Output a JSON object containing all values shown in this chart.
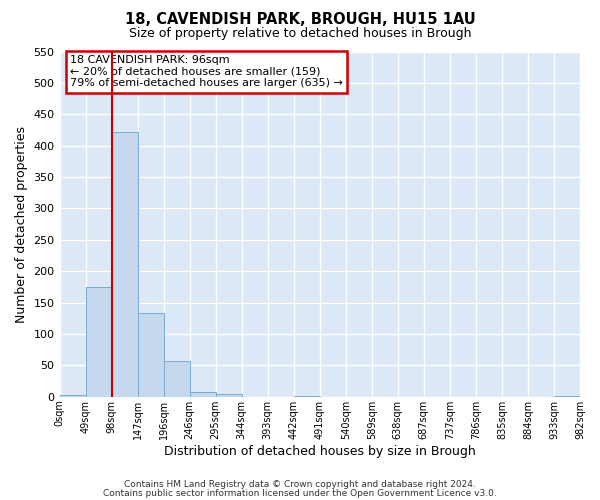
{
  "title": "18, CAVENDISH PARK, BROUGH, HU15 1AU",
  "subtitle": "Size of property relative to detached houses in Brough",
  "xlabel": "Distribution of detached houses by size in Brough",
  "ylabel": "Number of detached properties",
  "bar_color": "#c5d8ee",
  "bar_edge_color": "#7aaad4",
  "background_color": "#dce8f5",
  "grid_color": "#ffffff",
  "fig_color": "#ffffff",
  "bin_edges": [
    0,
    49,
    98,
    147,
    196,
    245,
    294,
    343,
    392,
    441,
    490,
    539,
    588,
    637,
    686,
    735,
    784,
    833,
    882,
    931,
    980
  ],
  "bin_labels": [
    "0sqm",
    "49sqm",
    "98sqm",
    "147sqm",
    "196sqm",
    "246sqm",
    "295sqm",
    "344sqm",
    "393sqm",
    "442sqm",
    "491sqm",
    "540sqm",
    "589sqm",
    "638sqm",
    "687sqm",
    "737sqm",
    "786sqm",
    "835sqm",
    "884sqm",
    "933sqm",
    "982sqm"
  ],
  "bar_heights": [
    3,
    175,
    422,
    133,
    57,
    7,
    4,
    0,
    0,
    2,
    0,
    0,
    0,
    0,
    0,
    0,
    0,
    0,
    0,
    2
  ],
  "ylim": [
    0,
    550
  ],
  "yticks": [
    0,
    50,
    100,
    150,
    200,
    250,
    300,
    350,
    400,
    450,
    500,
    550
  ],
  "property_label": "18 CAVENDISH PARK: 96sqm",
  "annotation_line1": "← 20% of detached houses are smaller (159)",
  "annotation_line2": "79% of semi-detached houses are larger (635) →",
  "vline_x": 98,
  "vline_color": "#cc0000",
  "annotation_box_color": "#cc0000",
  "footer_line1": "Contains HM Land Registry data © Crown copyright and database right 2024.",
  "footer_line2": "Contains public sector information licensed under the Open Government Licence v3.0."
}
